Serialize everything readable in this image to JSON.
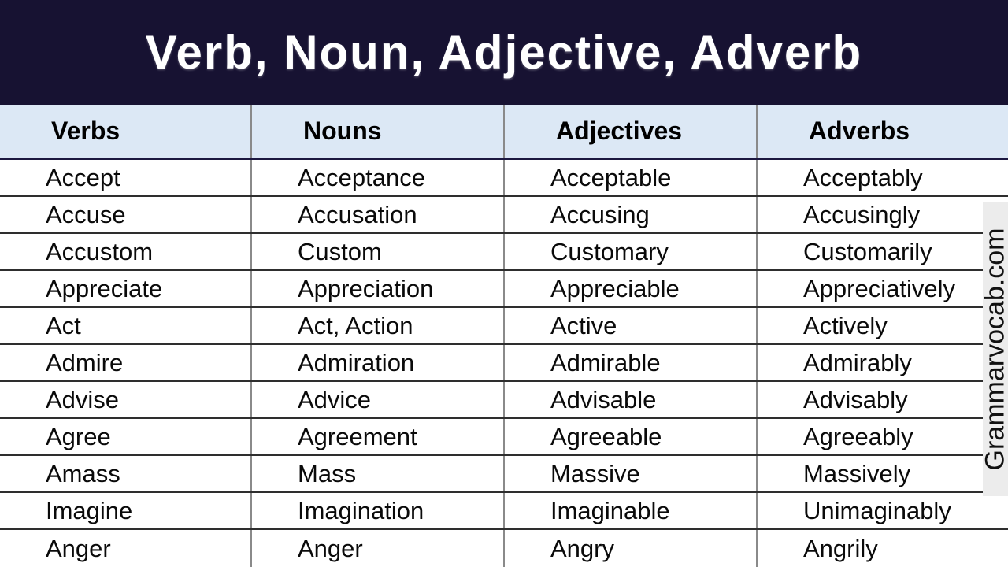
{
  "header": {
    "title": "Verb, Noun, Adjective, Adverb"
  },
  "table": {
    "columns": [
      "Verbs",
      "Nouns",
      "Adjectives",
      "Adverbs"
    ],
    "rows": [
      [
        "Accept",
        "Acceptance",
        "Acceptable",
        "Acceptably"
      ],
      [
        "Accuse",
        "Accusation",
        "Accusing",
        "Accusingly"
      ],
      [
        "Accustom",
        "Custom",
        "Customary",
        "Customarily"
      ],
      [
        "Appreciate",
        "Appreciation",
        "Appreciable",
        "Appreciatively"
      ],
      [
        "Act",
        "Act, Action",
        "Active",
        "Actively"
      ],
      [
        "Admire",
        "Admiration",
        "Admirable",
        "Admirably"
      ],
      [
        "Advise",
        "Advice",
        "Advisable",
        "Advisably"
      ],
      [
        "Agree",
        "Agreement",
        "Agreeable",
        "Agreeably"
      ],
      [
        "Amass",
        "Mass",
        "Massive",
        "Massively"
      ],
      [
        "Imagine",
        "Imagination",
        "Imaginable",
        "Unimaginably"
      ],
      [
        "Anger",
        "Anger",
        "Angry",
        "Angrily"
      ]
    ]
  },
  "watermark": {
    "text": "Grammarvocab.com"
  },
  "colors": {
    "title_band_bg": "#171232",
    "title_text": "#ffffff",
    "header_row_bg": "#dce8f5",
    "row_line": "#2e2e2e",
    "column_line": "#8a8a8a",
    "watermark_bg": "#ececec"
  }
}
